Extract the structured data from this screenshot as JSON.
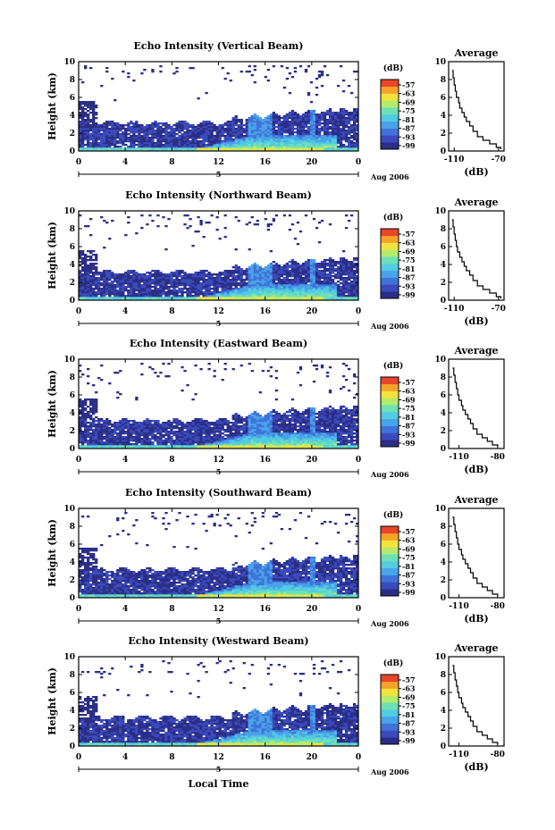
{
  "colors": {
    "scale": [
      "#2b2e86",
      "#3b4bbd",
      "#3f73d9",
      "#49a3e8",
      "#52cbe3",
      "#6fe0b5",
      "#b3ec6c",
      "#f2e23c",
      "#f6a329",
      "#e8452a"
    ]
  },
  "date_label": "Aug 2006",
  "xlabel": "Local Time",
  "day_marker": "5",
  "colorbar_unit": "(dB)",
  "colorbar_ticks": [
    "-57",
    "-63",
    "-69",
    "-75",
    "-81",
    "-87",
    "-93",
    "-99"
  ],
  "chart_data": [
    {
      "type": "heatmap",
      "title": "Echo Intensity (Vertical Beam)",
      "ylabel": "Height (km)",
      "xticks": [
        "0",
        "4",
        "8",
        "12",
        "16",
        "20",
        "0"
      ],
      "yticks": [
        "0",
        "2",
        "4",
        "6",
        "8",
        "10"
      ],
      "xlim": [
        0,
        24
      ],
      "ylim": [
        0,
        10
      ],
      "clim": [
        -99,
        -57
      ]
    },
    {
      "type": "heatmap",
      "title": "Echo Intensity (Northward Beam)",
      "ylabel": "Height (km)",
      "xticks": [
        "0",
        "4",
        "8",
        "12",
        "16",
        "20",
        "0"
      ],
      "yticks": [
        "0",
        "2",
        "4",
        "6",
        "8",
        "10"
      ],
      "xlim": [
        0,
        24
      ],
      "ylim": [
        0,
        10
      ],
      "clim": [
        -99,
        -57
      ]
    },
    {
      "type": "heatmap",
      "title": "Echo Intensity (Eastward Beam)",
      "ylabel": "Height (km)",
      "xticks": [
        "0",
        "4",
        "8",
        "12",
        "16",
        "20",
        "0"
      ],
      "yticks": [
        "0",
        "2",
        "4",
        "6",
        "8",
        "10"
      ],
      "xlim": [
        0,
        24
      ],
      "ylim": [
        0,
        10
      ],
      "clim": [
        -99,
        -57
      ]
    },
    {
      "type": "heatmap",
      "title": "Echo Intensity (Southward Beam)",
      "ylabel": "Height (km)",
      "xticks": [
        "0",
        "4",
        "8",
        "12",
        "16",
        "20",
        "0"
      ],
      "yticks": [
        "0",
        "2",
        "4",
        "6",
        "8",
        "10"
      ],
      "xlim": [
        0,
        24
      ],
      "ylim": [
        0,
        10
      ],
      "clim": [
        -99,
        -57
      ]
    },
    {
      "type": "heatmap",
      "title": "Echo Intensity (Westward Beam)",
      "ylabel": "Height (km)",
      "xticks": [
        "0",
        "4",
        "8",
        "12",
        "16",
        "20",
        "0"
      ],
      "yticks": [
        "0",
        "2",
        "4",
        "6",
        "8",
        "10"
      ],
      "xlim": [
        0,
        24
      ],
      "ylim": [
        0,
        10
      ],
      "clim": [
        -99,
        -57
      ]
    },
    {
      "type": "line",
      "title": "Average",
      "xlabel": "(dB)",
      "xticks": [
        "-110",
        "-70"
      ],
      "xlim": [
        -115,
        -65
      ],
      "yticks": [
        "0",
        "2",
        "4",
        "6",
        "8",
        "10"
      ],
      "ylim": [
        0,
        10
      ],
      "x": [
        -68,
        -72,
        -78,
        -84,
        -89,
        -93,
        -96,
        -99,
        -101,
        -103,
        -105,
        -106,
        -108,
        -109,
        -110,
        -111,
        -112
      ],
      "y": [
        0.2,
        0.4,
        0.8,
        1.2,
        1.6,
        2.2,
        2.8,
        3.3,
        3.8,
        4.3,
        4.8,
        5.4,
        6.0,
        6.7,
        7.4,
        8.2,
        9.0
      ]
    },
    {
      "type": "line",
      "title": "Average",
      "xlabel": "(dB)",
      "xticks": [
        "-110",
        "-70"
      ],
      "xlim": [
        -115,
        -65
      ],
      "yticks": [
        "0",
        "2",
        "4",
        "6",
        "8",
        "10"
      ],
      "ylim": [
        0,
        10
      ],
      "x": [
        -68,
        -72,
        -78,
        -84,
        -89,
        -93,
        -96,
        -99,
        -101,
        -103,
        -105,
        -107,
        -108,
        -109,
        -110,
        -111,
        -112
      ],
      "y": [
        0.2,
        0.4,
        0.8,
        1.2,
        1.6,
        2.2,
        2.8,
        3.3,
        3.8,
        4.3,
        4.8,
        5.4,
        6.0,
        6.7,
        7.4,
        8.2,
        9.0
      ]
    },
    {
      "type": "line",
      "title": "Average",
      "xlabel": "(dB)",
      "xticks": [
        "-110",
        "-80"
      ],
      "xlim": [
        -118,
        -75
      ],
      "yticks": [
        "0",
        "2",
        "4",
        "6",
        "8",
        "10"
      ],
      "ylim": [
        0,
        10
      ],
      "x": [
        -80,
        -84,
        -88,
        -92,
        -96,
        -99,
        -101,
        -103,
        -105,
        -107,
        -108,
        -110,
        -111,
        -112,
        -113,
        -114,
        -115
      ],
      "y": [
        0.2,
        0.4,
        0.8,
        1.2,
        1.6,
        2.2,
        2.8,
        3.3,
        3.8,
        4.3,
        4.8,
        5.4,
        6.0,
        6.7,
        7.4,
        8.2,
        9.0
      ]
    },
    {
      "type": "line",
      "title": "Average",
      "xlabel": "(dB)",
      "xticks": [
        "-110",
        "-80"
      ],
      "xlim": [
        -118,
        -75
      ],
      "yticks": [
        "0",
        "2",
        "4",
        "6",
        "8",
        "10"
      ],
      "ylim": [
        0,
        10
      ],
      "x": [
        -80,
        -84,
        -88,
        -92,
        -96,
        -99,
        -101,
        -103,
        -105,
        -107,
        -108,
        -110,
        -111,
        -112,
        -113,
        -114,
        -115
      ],
      "y": [
        0.2,
        0.4,
        0.8,
        1.2,
        1.6,
        2.2,
        2.8,
        3.3,
        3.8,
        4.3,
        4.8,
        5.4,
        6.0,
        6.7,
        7.4,
        8.2,
        9.0
      ]
    },
    {
      "type": "line",
      "title": "Average",
      "xlabel": "(dB)",
      "xticks": [
        "-110",
        "-80"
      ],
      "xlim": [
        -118,
        -75
      ],
      "yticks": [
        "0",
        "2",
        "4",
        "6",
        "8",
        "10"
      ],
      "ylim": [
        0,
        10
      ],
      "x": [
        -80,
        -84,
        -88,
        -92,
        -96,
        -99,
        -101,
        -103,
        -105,
        -107,
        -108,
        -110,
        -111,
        -112,
        -113,
        -114,
        -115
      ],
      "y": [
        0.2,
        0.4,
        0.8,
        1.2,
        1.6,
        2.2,
        2.8,
        3.3,
        3.8,
        4.3,
        4.8,
        5.4,
        6.0,
        6.7,
        7.4,
        8.2,
        9.0
      ]
    }
  ]
}
